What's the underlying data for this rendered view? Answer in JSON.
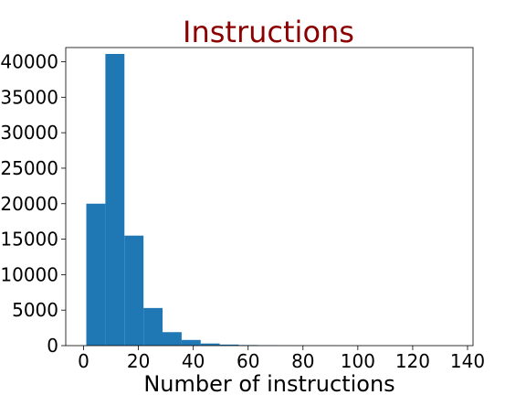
{
  "chart_data": {
    "type": "bar",
    "title": "Instructions",
    "xlabel": "Number of instructions",
    "ylabel": "",
    "title_color": "#8b0000",
    "bar_color": "#1f77b4",
    "xlim": [
      -6.5,
      142
    ],
    "ylim": [
      0,
      42000
    ],
    "x_ticks": [
      0,
      20,
      40,
      60,
      80,
      100,
      120,
      140
    ],
    "y_ticks": [
      0,
      5000,
      10000,
      15000,
      20000,
      25000,
      30000,
      35000,
      40000
    ],
    "x_tick_labels": [
      "0",
      "20",
      "40",
      "60",
      "80",
      "100",
      "120",
      "140"
    ],
    "y_tick_labels": [
      "0",
      "5000",
      "10000",
      "15000",
      "20000",
      "25000",
      "30000",
      "35000",
      "40000"
    ],
    "bin_edges": [
      1,
      7.95,
      14.9,
      21.85,
      28.8,
      35.75,
      42.7,
      49.65,
      56.6,
      63.55,
      70.5,
      77.45,
      84.4,
      91.35,
      98.3,
      105.25,
      112.2,
      119.15,
      126.1,
      133.05,
      140
    ],
    "values": [
      20000,
      41100,
      15500,
      5300,
      1900,
      800,
      300,
      150,
      80,
      40,
      20,
      10,
      8,
      5,
      3,
      2,
      2,
      1,
      1,
      1
    ]
  }
}
